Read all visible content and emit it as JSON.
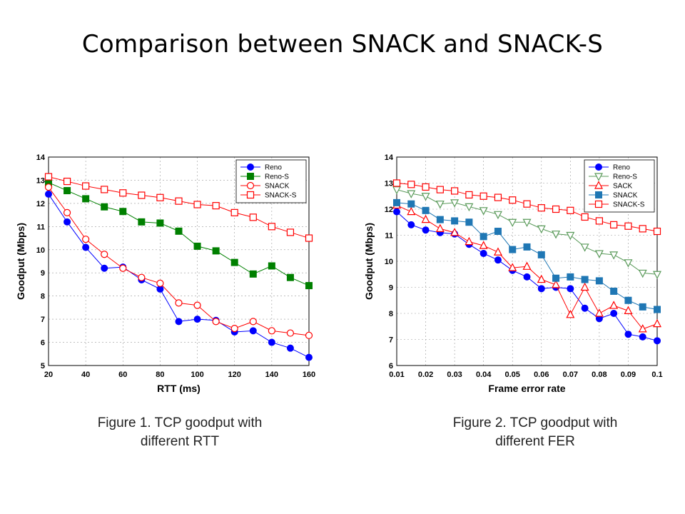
{
  "slide": {
    "title": "Comparison between SNACK and SNACK-S"
  },
  "captions": [
    {
      "line1": "Figure 1. TCP goodput with",
      "line2": "different RTT"
    },
    {
      "line1": "Figure 2. TCP goodput with",
      "line2": "different FER"
    }
  ],
  "chart_data": [
    {
      "type": "line",
      "xlabel": "RTT (ms)",
      "ylabel": "Goodput (Mbps)",
      "xlim": [
        20,
        160
      ],
      "ylim": [
        5,
        14
      ],
      "xticks": [
        "20",
        "40",
        "60",
        "80",
        "100",
        "120",
        "140",
        "160"
      ],
      "yticks": [
        "5",
        "6",
        "7",
        "8",
        "9",
        "10",
        "11",
        "12",
        "13",
        "14"
      ],
      "grid": true,
      "legend_position": "top-right",
      "x": [
        20,
        30,
        40,
        50,
        60,
        70,
        80,
        90,
        100,
        110,
        120,
        130,
        140,
        150,
        160
      ],
      "series": [
        {
          "name": "Reno",
          "color": "#0000ff",
          "marker": "circle-filled",
          "values": [
            12.4,
            11.2,
            10.1,
            9.2,
            9.25,
            8.7,
            8.3,
            6.9,
            7.0,
            6.95,
            6.45,
            6.5,
            6.0,
            5.75,
            5.35
          ]
        },
        {
          "name": "Reno-S",
          "color": "#008000",
          "marker": "square-filled",
          "values": [
            12.9,
            12.55,
            12.2,
            11.85,
            11.65,
            11.2,
            11.15,
            10.8,
            10.15,
            9.95,
            9.45,
            8.95,
            9.3,
            8.8,
            8.45
          ]
        },
        {
          "name": "SNACK",
          "color": "#ff0000",
          "marker": "circle-open",
          "values": [
            12.7,
            11.6,
            10.45,
            9.8,
            9.2,
            8.8,
            8.55,
            7.7,
            7.6,
            6.9,
            6.6,
            6.9,
            6.5,
            6.4,
            6.3
          ]
        },
        {
          "name": "SNACK-S",
          "color": "#ff0000",
          "marker": "square-open",
          "values": [
            13.15,
            12.95,
            12.75,
            12.6,
            12.45,
            12.35,
            12.25,
            12.1,
            11.95,
            11.9,
            11.6,
            11.4,
            11.0,
            10.75,
            10.5
          ]
        }
      ]
    },
    {
      "type": "line",
      "xlabel": "Frame error rate",
      "ylabel": "Goodput (Mbps)",
      "xlim": [
        0.01,
        0.1
      ],
      "ylim": [
        6,
        14
      ],
      "xticks": [
        "0.01",
        "0.02",
        "0.03",
        "0.04",
        "0.05",
        "0.06",
        "0.07",
        "0.08",
        "0.09",
        "0.1"
      ],
      "yticks": [
        "6",
        "7",
        "8",
        "9",
        "10",
        "11",
        "12",
        "13",
        "14"
      ],
      "grid": true,
      "legend_position": "top-right",
      "x": [
        0.01,
        0.015,
        0.02,
        0.025,
        0.03,
        0.035,
        0.04,
        0.045,
        0.05,
        0.055,
        0.06,
        0.065,
        0.07,
        0.075,
        0.08,
        0.085,
        0.09,
        0.095,
        0.1
      ],
      "series": [
        {
          "name": "Reno",
          "color": "#0000ff",
          "marker": "circle-filled",
          "values": [
            11.9,
            11.4,
            11.2,
            11.1,
            11.05,
            10.65,
            10.3,
            10.05,
            9.65,
            9.4,
            8.95,
            9.0,
            8.95,
            8.2,
            7.8,
            8.0,
            7.2,
            7.1,
            6.95
          ]
        },
        {
          "name": "Reno-S",
          "color": "#5a9a5a",
          "marker": "triangle-down-open",
          "values": [
            12.75,
            12.6,
            12.5,
            12.2,
            12.25,
            12.1,
            11.95,
            11.8,
            11.5,
            11.5,
            11.25,
            11.05,
            11.0,
            10.55,
            10.3,
            10.25,
            9.95,
            9.55,
            9.5
          ]
        },
        {
          "name": "SACK",
          "color": "#ff0000",
          "marker": "triangle-up-open",
          "values": [
            12.15,
            11.9,
            11.6,
            11.25,
            11.1,
            10.75,
            10.6,
            10.35,
            9.75,
            9.8,
            9.3,
            9.1,
            7.95,
            9.0,
            8.0,
            8.3,
            8.1,
            7.4,
            7.6
          ]
        },
        {
          "name": "SNACK",
          "color": "#1f77b4",
          "marker": "square-filled",
          "values": [
            12.25,
            12.2,
            11.95,
            11.6,
            11.55,
            11.5,
            10.95,
            11.15,
            10.45,
            10.55,
            10.25,
            9.35,
            9.4,
            9.3,
            9.25,
            8.85,
            8.5,
            8.25,
            8.15
          ]
        },
        {
          "name": "SNACK-S",
          "color": "#ff0000",
          "marker": "square-open",
          "values": [
            13.0,
            12.95,
            12.85,
            12.75,
            12.7,
            12.55,
            12.5,
            12.45,
            12.35,
            12.2,
            12.05,
            12.0,
            11.95,
            11.7,
            11.55,
            11.4,
            11.35,
            11.25,
            11.15
          ]
        }
      ]
    }
  ]
}
